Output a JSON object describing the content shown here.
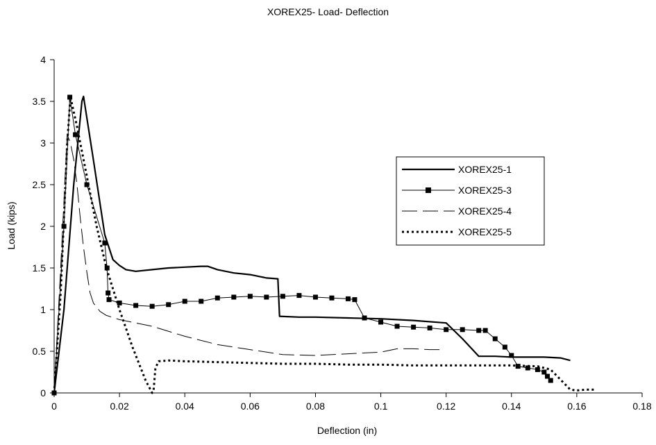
{
  "chart_data": {
    "type": "line",
    "title": "XOREX25- Load- Deflection",
    "xlabel": "Deflection (in)",
    "ylabel": "Load (kips)",
    "xlim": [
      0,
      0.18
    ],
    "ylim": [
      0,
      4
    ],
    "xticks": [
      "0",
      "0.02",
      "0.04",
      "0.06",
      "0.08",
      "0.1",
      "0.12",
      "0.14",
      "0.16",
      "0.18"
    ],
    "yticks": [
      "0",
      "0.5",
      "1",
      "1.5",
      "2",
      "2.5",
      "3",
      "3.5",
      "4"
    ],
    "grid": false,
    "legend_position": "right",
    "series": [
      {
        "name": "XOREX25-1",
        "style": "solid-medium",
        "x": [
          0,
          0.003,
          0.006,
          0.0085,
          0.009,
          0.012,
          0.0155,
          0.018,
          0.02,
          0.022,
          0.025,
          0.03,
          0.035,
          0.04,
          0.045,
          0.047,
          0.05,
          0.055,
          0.06,
          0.065,
          0.0685,
          0.069,
          0.075,
          0.08,
          0.09,
          0.1,
          0.11,
          0.12,
          0.125,
          0.13,
          0.135,
          0.14,
          0.145,
          0.15,
          0.155,
          0.158
        ],
        "values": [
          0,
          1.0,
          2.5,
          3.5,
          3.56,
          2.8,
          1.9,
          1.6,
          1.53,
          1.48,
          1.46,
          1.48,
          1.5,
          1.51,
          1.52,
          1.52,
          1.48,
          1.44,
          1.42,
          1.38,
          1.37,
          0.92,
          0.91,
          0.91,
          0.9,
          0.89,
          0.87,
          0.84,
          0.65,
          0.44,
          0.44,
          0.43,
          0.43,
          0.43,
          0.42,
          0.39
        ]
      },
      {
        "name": "XOREX25-3",
        "style": "thin-square-markers",
        "x": [
          0,
          0.003,
          0.0048,
          0.0065,
          0.01,
          0.0155,
          0.0162,
          0.0165,
          0.0168,
          0.02,
          0.025,
          0.03,
          0.035,
          0.04,
          0.045,
          0.05,
          0.055,
          0.06,
          0.065,
          0.07,
          0.075,
          0.08,
          0.085,
          0.09,
          0.092,
          0.095,
          0.1,
          0.105,
          0.11,
          0.115,
          0.12,
          0.125,
          0.13,
          0.132,
          0.135,
          0.138,
          0.14,
          0.142,
          0.145,
          0.148,
          0.15,
          0.151,
          0.152
        ],
        "values": [
          0,
          2.0,
          3.55,
          3.1,
          2.5,
          1.8,
          1.5,
          1.2,
          1.12,
          1.08,
          1.05,
          1.04,
          1.06,
          1.1,
          1.1,
          1.14,
          1.15,
          1.16,
          1.15,
          1.16,
          1.17,
          1.15,
          1.14,
          1.13,
          1.12,
          0.9,
          0.85,
          0.8,
          0.79,
          0.78,
          0.76,
          0.76,
          0.75,
          0.75,
          0.65,
          0.55,
          0.45,
          0.32,
          0.3,
          0.28,
          0.25,
          0.2,
          0.15
        ]
      },
      {
        "name": "XOREX25-4",
        "style": "long-dash-thin",
        "x": [
          0,
          0.002,
          0.004,
          0.005,
          0.006,
          0.007,
          0.008,
          0.009,
          0.01,
          0.011,
          0.012,
          0.014,
          0.016,
          0.02,
          0.025,
          0.03,
          0.04,
          0.05,
          0.06,
          0.07,
          0.08,
          0.09,
          0.095,
          0.1,
          0.105,
          0.11,
          0.115,
          0.1185
        ],
        "values": [
          0,
          1.5,
          3.1,
          3.0,
          2.8,
          2.5,
          2.1,
          1.75,
          1.45,
          1.2,
          1.08,
          0.98,
          0.93,
          0.88,
          0.84,
          0.8,
          0.68,
          0.58,
          0.52,
          0.46,
          0.45,
          0.47,
          0.48,
          0.49,
          0.53,
          0.53,
          0.52,
          0.52
        ]
      },
      {
        "name": "XOREX25-5",
        "style": "dotted-thick",
        "x": [
          0,
          0.002,
          0.004,
          0.005,
          0.007,
          0.01,
          0.013,
          0.016,
          0.02,
          0.024,
          0.028,
          0.03,
          0.0305,
          0.0308,
          0.031,
          0.032,
          0.035,
          0.04,
          0.05,
          0.06,
          0.07,
          0.08,
          0.09,
          0.1,
          0.11,
          0.12,
          0.13,
          0.14,
          0.148,
          0.152,
          0.154,
          0.156,
          0.158,
          0.16,
          0.163,
          0.166
        ],
        "values": [
          0,
          1.2,
          3.0,
          3.55,
          3.2,
          2.6,
          2.0,
          1.5,
          1.0,
          0.55,
          0.15,
          0,
          0.05,
          0.2,
          0.3,
          0.38,
          0.39,
          0.38,
          0.37,
          0.36,
          0.35,
          0.35,
          0.34,
          0.34,
          0.33,
          0.33,
          0.33,
          0.33,
          0.32,
          0.28,
          0.2,
          0.12,
          0.04,
          0.03,
          0.04,
          0.04
        ]
      }
    ]
  }
}
